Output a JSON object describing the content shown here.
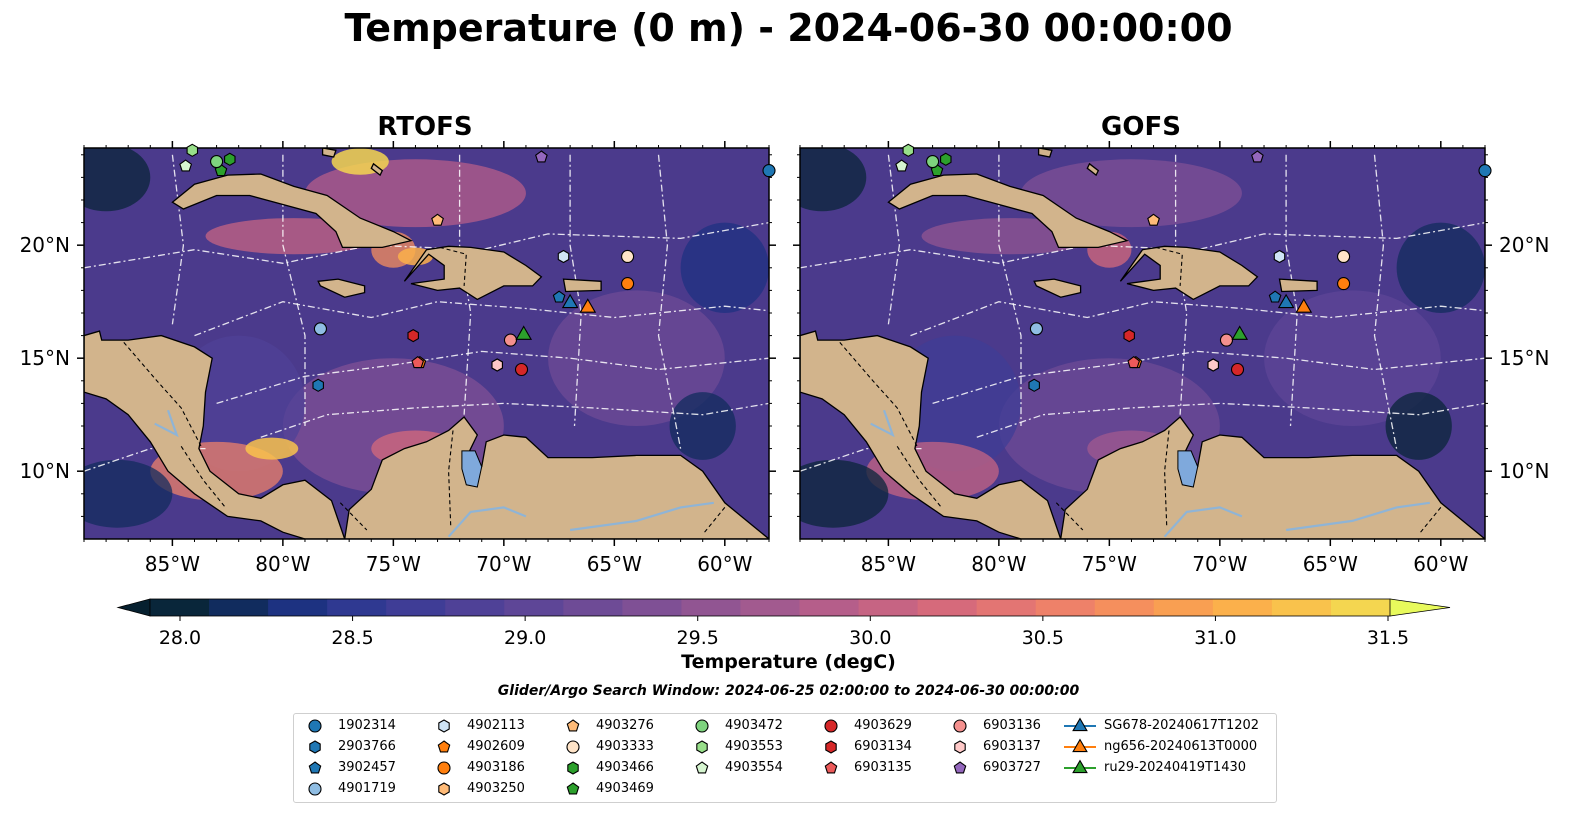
{
  "title": "Temperature (0 m) - 2024-06-30 00:00:00",
  "panels": [
    {
      "title": "RTOFS"
    },
    {
      "title": "GOFS"
    }
  ],
  "map": {
    "lon_range": [
      -89,
      -58
    ],
    "lat_range": [
      7,
      24.3
    ],
    "lon_ticks": [
      -85,
      -80,
      -75,
      -70,
      -65,
      -60
    ],
    "lon_tick_labels": [
      "85°W",
      "80°W",
      "75°W",
      "70°W",
      "65°W",
      "60°W"
    ],
    "lat_ticks": [
      10,
      15,
      20
    ],
    "lat_tick_labels": [
      "10°N",
      "15°N",
      "20°N"
    ],
    "land_color": "#d2b48c",
    "ocean_color": "#4b3a8c",
    "river_color": "#8fb4d6",
    "lake_color": "#7fa9dc"
  },
  "colorbar": {
    "label": "Temperature (degC)",
    "min": 28.0,
    "max": 31.5,
    "ticks": [
      28.0,
      28.5,
      29.0,
      29.5,
      30.0,
      30.5,
      31.0,
      31.5
    ],
    "tick_labels": [
      "28.0",
      "28.5",
      "29.0",
      "29.5",
      "30.0",
      "30.5",
      "31.0",
      "31.5"
    ],
    "colors": [
      "#09263a",
      "#112c5e",
      "#1d3281",
      "#2f3991",
      "#3f3d96",
      "#4f4197",
      "#5e4697",
      "#6e4b96",
      "#7f5095",
      "#915592",
      "#a25a8f",
      "#b55e8a",
      "#c66483",
      "#d66a7b",
      "#e37573",
      "#ee8169",
      "#f58f5d",
      "#f99f52",
      "#fbb04b",
      "#f9c24c",
      "#f4d650"
    ],
    "extend_low": "#06202f",
    "extend_high": "#e8fa5c"
  },
  "search_window": "Glider/Argo Search Window: 2024-06-25 02:00:00 to 2024-06-30 00:00:00",
  "legend": [
    {
      "label": "1902314",
      "marker": "circle",
      "color": "#1f77b4"
    },
    {
      "label": "2903766",
      "marker": "hexagon",
      "color": "#1f77b4"
    },
    {
      "label": "3902457",
      "marker": "pentagon",
      "color": "#1f77b4"
    },
    {
      "label": "4901719",
      "marker": "circle",
      "color": "#8fbde3"
    },
    {
      "label": "4902113",
      "marker": "hexagon",
      "color": "#cfe4f5"
    },
    {
      "label": "4902609",
      "marker": "pentagon",
      "color": "#ff7f0e"
    },
    {
      "label": "4903186",
      "marker": "circle",
      "color": "#ff7f0e"
    },
    {
      "label": "4903250",
      "marker": "hexagon",
      "color": "#ffbb78"
    },
    {
      "label": "4903276",
      "marker": "pentagon",
      "color": "#ffbb78"
    },
    {
      "label": "4903333",
      "marker": "circle",
      "color": "#ffe4c8"
    },
    {
      "label": "4903466",
      "marker": "hexagon",
      "color": "#2ca02c"
    },
    {
      "label": "4903469",
      "marker": "pentagon",
      "color": "#2ca02c"
    },
    {
      "label": "4903472",
      "marker": "circle",
      "color": "#7ed37e"
    },
    {
      "label": "4903553",
      "marker": "hexagon",
      "color": "#98df8a"
    },
    {
      "label": "4903554",
      "marker": "pentagon",
      "color": "#d6f5d0"
    },
    {
      "label": "4903629",
      "marker": "circle",
      "color": "#d62728"
    },
    {
      "label": "6903134",
      "marker": "hexagon",
      "color": "#d62728"
    },
    {
      "label": "6903135",
      "marker": "pentagon",
      "color": "#ec5a5a"
    },
    {
      "label": "6903136",
      "marker": "circle",
      "color": "#f4908e"
    },
    {
      "label": "6903137",
      "marker": "hexagon",
      "color": "#ffc9c8"
    },
    {
      "label": "6903727",
      "marker": "pentagon",
      "color": "#9467bd"
    },
    {
      "label": "SG678-20240617T1202",
      "marker": "triangle",
      "color": "#1f77b4"
    },
    {
      "label": "ng656-20240613T0000",
      "marker": "triangle",
      "color": "#ff7f0e"
    },
    {
      "label": "ru29-20240419T1430",
      "marker": "triangle",
      "color": "#2ca02c"
    }
  ],
  "floats": [
    {
      "id": "1902314",
      "lon": -58.0,
      "lat": 23.3
    },
    {
      "id": "2903766",
      "lon": -78.4,
      "lat": 13.8
    },
    {
      "id": "3902457",
      "lon": -67.5,
      "lat": 17.7
    },
    {
      "id": "4901719",
      "lon": -78.3,
      "lat": 16.3
    },
    {
      "id": "4902113",
      "lon": -67.3,
      "lat": 19.5
    },
    {
      "id": "4902609",
      "lon": -73.8,
      "lat": 14.8
    },
    {
      "id": "4903186",
      "lon": -64.4,
      "lat": 18.3
    },
    {
      "id": "4903250",
      "lon": -70.3,
      "lat": 14.7
    },
    {
      "id": "4903276",
      "lon": -73.0,
      "lat": 21.1
    },
    {
      "id": "4903333",
      "lon": -64.4,
      "lat": 19.5
    },
    {
      "id": "4903466",
      "lon": -82.4,
      "lat": 23.8
    },
    {
      "id": "4903469",
      "lon": -82.8,
      "lat": 23.3
    },
    {
      "id": "4903472",
      "lon": -83.0,
      "lat": 23.7
    },
    {
      "id": "4903553",
      "lon": -84.1,
      "lat": 24.2
    },
    {
      "id": "4903554",
      "lon": -84.4,
      "lat": 23.5
    },
    {
      "id": "4903629",
      "lon": -69.2,
      "lat": 14.5
    },
    {
      "id": "6903134",
      "lon": -74.1,
      "lat": 16.0
    },
    {
      "id": "6903135",
      "lon": -73.9,
      "lat": 14.8
    },
    {
      "id": "6903136",
      "lon": -69.7,
      "lat": 15.8
    },
    {
      "id": "6903137",
      "lon": -70.3,
      "lat": 14.7
    },
    {
      "id": "6903727",
      "lon": -68.3,
      "lat": 23.9
    }
  ],
  "gliders": [
    {
      "id": "SG678-20240617T1202",
      "lon": -67.0,
      "lat": 17.5
    },
    {
      "id": "ng656-20240613T0000",
      "lon": -66.2,
      "lat": 17.3
    },
    {
      "id": "ru29-20240419T1430",
      "lon": -69.1,
      "lat": 16.1
    }
  ]
}
